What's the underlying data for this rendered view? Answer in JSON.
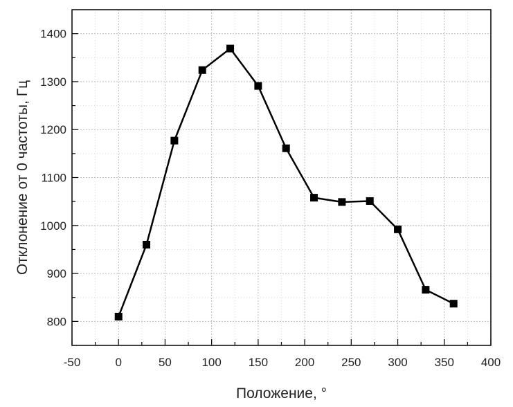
{
  "chart_data": {
    "type": "line",
    "xlabel": "Положение, °",
    "ylabel": "Отклонение от 0 частоты, Гц",
    "xlim": [
      -50,
      400
    ],
    "ylim": [
      750,
      1450
    ],
    "xticks": [
      -50,
      0,
      50,
      100,
      150,
      200,
      250,
      300,
      350,
      400
    ],
    "yticks": [
      800,
      900,
      1000,
      1100,
      1200,
      1300,
      1400
    ],
    "grid": true,
    "marker": "square",
    "series": [
      {
        "x": [
          0,
          30,
          60,
          90,
          120,
          150,
          180,
          210,
          240,
          270,
          300,
          330,
          360
        ],
        "y": [
          810,
          960,
          1177,
          1324,
          1369,
          1291,
          1161,
          1058,
          1049,
          1051,
          992,
          866,
          837
        ]
      }
    ]
  }
}
